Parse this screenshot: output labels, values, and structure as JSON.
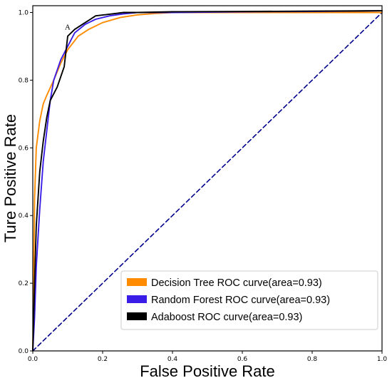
{
  "chart_data": {
    "type": "line",
    "xlabel": "False Positive Rate",
    "ylabel": "Ture Positive Rate",
    "xlim": [
      0,
      1
    ],
    "ylim": [
      0,
      1.02
    ],
    "x_ticks": [
      "0.0",
      "0.2",
      "0.4",
      "0.6",
      "0.8",
      "1.0"
    ],
    "y_ticks": [
      "0.0",
      "0.2",
      "0.4",
      "0.6",
      "0.8",
      "1.0"
    ],
    "grid": false,
    "legend_position": "lower-right",
    "annotation": {
      "text": "A",
      "x": 0.11,
      "y": 0.945
    },
    "series": [
      {
        "name": "Decision Tree ROC curve(area=0.93)",
        "color": "#ff8c00",
        "x": [
          0,
          0.005,
          0.01,
          0.02,
          0.03,
          0.04,
          0.06,
          0.08,
          0.1,
          0.13,
          0.16,
          0.2,
          0.25,
          0.3,
          0.35,
          0.4,
          0.6,
          0.8,
          1.0
        ],
        "y": [
          0,
          0.45,
          0.6,
          0.68,
          0.73,
          0.755,
          0.8,
          0.85,
          0.89,
          0.93,
          0.95,
          0.97,
          0.985,
          0.993,
          0.997,
          1.0,
          1.0,
          1.0,
          1.0
        ]
      },
      {
        "name": "Random Forest ROC curve(area=0.93)",
        "color": "#3a1ee8",
        "x": [
          0,
          0.005,
          0.01,
          0.02,
          0.03,
          0.05,
          0.06,
          0.08,
          0.1,
          0.12,
          0.15,
          0.18,
          0.22,
          0.26,
          0.3,
          0.4,
          0.6,
          0.8,
          1.0
        ],
        "y": [
          0,
          0.1,
          0.25,
          0.42,
          0.56,
          0.74,
          0.8,
          0.86,
          0.9,
          0.94,
          0.965,
          0.98,
          0.99,
          0.996,
          1.0,
          1.0,
          1.002,
          1.003,
          1.005
        ]
      },
      {
        "name": "Adaboost ROC curve(area=0.93)",
        "color": "#000000",
        "x": [
          0,
          0.005,
          0.01,
          0.02,
          0.03,
          0.04,
          0.05,
          0.07,
          0.09,
          0.1,
          0.12,
          0.15,
          0.18,
          0.22,
          0.26,
          0.3,
          0.4,
          0.6,
          0.8,
          1.0
        ],
        "y": [
          0,
          0.2,
          0.37,
          0.53,
          0.62,
          0.69,
          0.74,
          0.78,
          0.84,
          0.93,
          0.95,
          0.97,
          0.99,
          0.995,
          1.0,
          1.0,
          1.002,
          1.003,
          1.004,
          1.005
        ]
      },
      {
        "name": "",
        "color": "#00008b",
        "dashed": true,
        "x": [
          0,
          1
        ],
        "y": [
          0,
          1
        ]
      }
    ]
  }
}
